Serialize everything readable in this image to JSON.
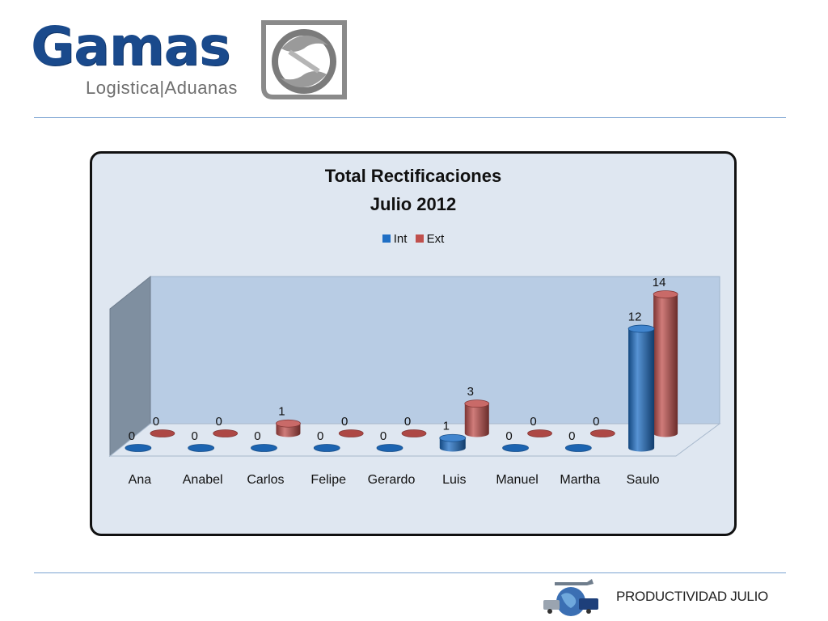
{
  "logo": {
    "word": "Gamas",
    "subtitle": "Logistica|Aduanas"
  },
  "footer": {
    "text": "PRODUCTIVIDAD JULIO"
  },
  "colors": {
    "int": "#1f6fc5",
    "ext": "#c0504d",
    "frame_bg": "#dfe7f1",
    "rule": "#7aa3d1"
  },
  "chart_data": {
    "type": "bar",
    "title": "Total Rectificaciones",
    "subtitle": "Julio 2012",
    "categories": [
      "Ana",
      "Anabel",
      "Carlos",
      "Felipe",
      "Gerardo",
      "Luis",
      "Manuel",
      "Martha",
      "Saulo"
    ],
    "series": [
      {
        "name": "Int",
        "values": [
          0,
          0,
          0,
          0,
          0,
          1,
          0,
          0,
          12
        ]
      },
      {
        "name": "Ext",
        "values": [
          0,
          0,
          1,
          0,
          0,
          3,
          0,
          0,
          14
        ]
      }
    ],
    "legend": "top",
    "ylim": [
      0,
      14
    ],
    "grid": false,
    "style": "3d-cylinder"
  }
}
